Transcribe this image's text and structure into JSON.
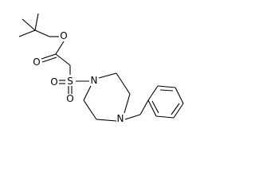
{
  "atoms": [
    {
      "label": "O"
    },
    {
      "label": "O"
    },
    {
      "label": "S"
    },
    {
      "label": "O"
    },
    {
      "label": "O"
    },
    {
      "label": "N"
    },
    {
      "label": "N"
    }
  ]
}
